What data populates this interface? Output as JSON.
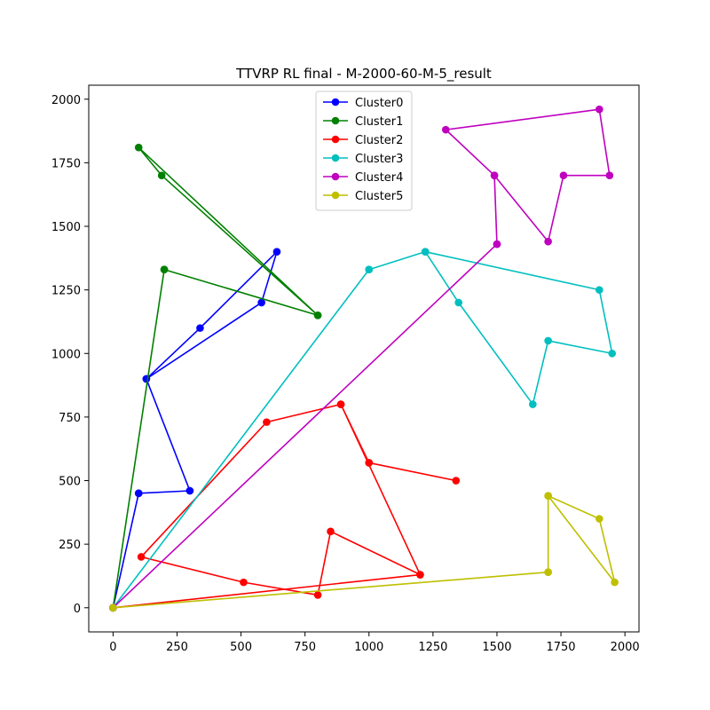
{
  "chart_data": {
    "type": "line",
    "title": "TTVRP RL final - M-2000-60-M-5_result",
    "xlabel": "",
    "ylabel": "",
    "xlim": [
      -95,
      2055
    ],
    "ylim": [
      -95,
      2055
    ],
    "x_ticks": [
      0,
      250,
      500,
      750,
      1000,
      1250,
      1500,
      1750,
      2000
    ],
    "y_ticks": [
      0,
      250,
      500,
      750,
      1000,
      1250,
      1500,
      1750,
      2000
    ],
    "grid": false,
    "legend_position": "upper center",
    "series": [
      {
        "name": "Cluster0",
        "color": "#0000ff",
        "routes": [
          [
            [
              0,
              0
            ],
            [
              100,
              450
            ],
            [
              300,
              460
            ],
            [
              130,
              900
            ],
            [
              340,
              1100
            ],
            [
              640,
              1400
            ],
            [
              580,
              1200
            ],
            [
              130,
              900
            ],
            [
              300,
              460
            ],
            [
              100,
              450
            ],
            [
              0,
              0
            ]
          ]
        ]
      },
      {
        "name": "Cluster1",
        "color": "#008000",
        "routes": [
          [
            [
              0,
              0
            ],
            [
              200,
              1330
            ],
            [
              800,
              1150
            ],
            [
              100,
              1810
            ],
            [
              190,
              1700
            ],
            [
              800,
              1150
            ],
            [
              200,
              1330
            ],
            [
              0,
              0
            ]
          ]
        ]
      },
      {
        "name": "Cluster2",
        "color": "#ff0000",
        "routes": [
          [
            [
              0,
              0
            ],
            [
              1200,
              130
            ],
            [
              850,
              300
            ],
            [
              800,
              50
            ],
            [
              510,
              100
            ],
            [
              110,
              200
            ],
            [
              600,
              730
            ],
            [
              890,
              800
            ],
            [
              1000,
              570
            ],
            [
              1340,
              500
            ],
            [
              1000,
              570
            ],
            [
              890,
              800
            ],
            [
              1200,
              130
            ],
            [
              0,
              0
            ]
          ]
        ]
      },
      {
        "name": "Cluster3",
        "color": "#00bfbf",
        "routes": [
          [
            [
              0,
              0
            ],
            [
              1000,
              1330
            ],
            [
              1220,
              1400
            ],
            [
              1900,
              1250
            ],
            [
              1950,
              1000
            ],
            [
              1700,
              1050
            ],
            [
              1640,
              800
            ],
            [
              1350,
              1200
            ],
            [
              1220,
              1400
            ],
            [
              1000,
              1330
            ],
            [
              0,
              0
            ]
          ]
        ]
      },
      {
        "name": "Cluster4",
        "color": "#bf00bf",
        "routes": [
          [
            [
              0,
              0
            ],
            [
              1500,
              1430
            ],
            [
              1490,
              1700
            ],
            [
              1300,
              1880
            ],
            [
              1900,
              1960
            ],
            [
              1940,
              1700
            ],
            [
              1760,
              1700
            ],
            [
              1700,
              1440
            ],
            [
              1490,
              1700
            ],
            [
              1500,
              1430
            ],
            [
              0,
              0
            ]
          ]
        ]
      },
      {
        "name": "Cluster5",
        "color": "#bfbf00",
        "routes": [
          [
            [
              0,
              0
            ],
            [
              1700,
              140
            ],
            [
              1700,
              440
            ],
            [
              1900,
              350
            ],
            [
              1960,
              100
            ],
            [
              1700,
              440
            ],
            [
              1700,
              140
            ],
            [
              0,
              0
            ]
          ]
        ]
      }
    ]
  }
}
